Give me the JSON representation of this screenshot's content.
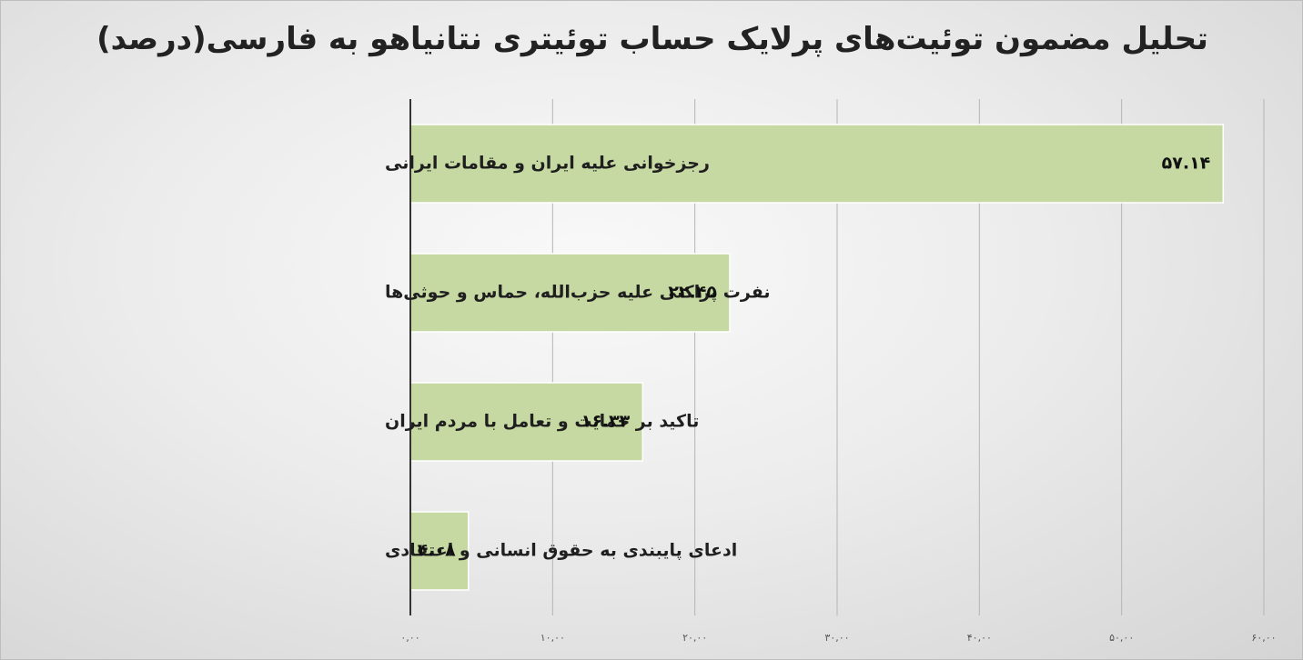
{
  "chart_data": {
    "type": "bar",
    "orientation": "horizontal",
    "title": "تحلیل مضمون توئیت‌های پرلایک حساب توئیتری نتانیاهو به فارسی(درصد)",
    "categories": [
      "رجزخوانی علیه ایران و مقامات ایرانی",
      "نفرت پراکنی علیه حزب‌الله، حماس و حوثی‌ها",
      "تاکید بر حمایت و تعامل با مردم ایران",
      "ادعای پایبندی به حقوق انسانی و اعتقادی"
    ],
    "values": [
      57.14,
      22.45,
      16.33,
      4.08
    ],
    "value_labels": [
      "۵۷.۱۴",
      "۲۲.۴۵",
      "۱۶.۳۳",
      "۴.۰۸"
    ],
    "xlim": [
      0,
      60
    ],
    "ticks": [
      0,
      10,
      20,
      30,
      40,
      50,
      60
    ],
    "tick_labels": [
      "۰,۰۰",
      "۱۰,۰۰",
      "۲۰,۰۰",
      "۳۰,۰۰",
      "۴۰,۰۰",
      "۵۰,۰۰",
      "۶۰,۰۰"
    ],
    "xlabel": "",
    "ylabel": "",
    "grid": true,
    "legend": "none",
    "colors": {
      "bar_fill": "#c6d9a2",
      "bar_stroke": "#ffffff",
      "axis": "#333333",
      "grid": "#b5b5b5"
    }
  }
}
